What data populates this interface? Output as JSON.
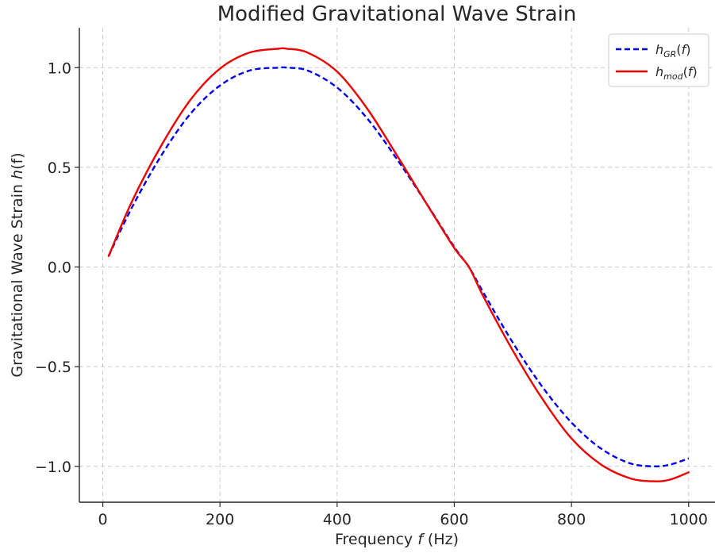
{
  "chart_data": {
    "type": "line",
    "title": "Modified Gravitational Wave Strain",
    "xlabel_pre": "Frequency ",
    "xlabel_var": "f",
    "xlabel_post": " (Hz)",
    "ylabel_pre": "Gravitational Wave Strain ",
    "ylabel_var": "h",
    "ylabel_post": "(f)",
    "xlim": [
      -40,
      1045
    ],
    "ylim": [
      -1.18,
      1.2
    ],
    "xticks": [
      0,
      200,
      400,
      600,
      800,
      1000
    ],
    "xtick_labels": [
      "0",
      "200",
      "400",
      "600",
      "800",
      "1000"
    ],
    "yticks": [
      -1.0,
      -0.5,
      0.0,
      0.5,
      1.0
    ],
    "ytick_labels": [
      "−1.0",
      "−0.5",
      "0.0",
      "0.5",
      "1.0"
    ],
    "grid": true,
    "legend_position": "top-right",
    "series": [
      {
        "name": "h_GR(f)",
        "legend_base": "h",
        "legend_sub": "GR",
        "legend_suffix": "(f)",
        "color": "#0000ee",
        "style": "dashed",
        "x": [
          10,
          50,
          100,
          150,
          200,
          250,
          300,
          314,
          350,
          400,
          450,
          500,
          550,
          600,
          625,
          650,
          700,
          750,
          800,
          850,
          900,
          943,
          970,
          1000
        ],
        "y": [
          0.055,
          0.3,
          0.56,
          0.77,
          0.91,
          0.985,
          1.0,
          1.0,
          0.985,
          0.9,
          0.75,
          0.55,
          0.33,
          0.1,
          0.0,
          -0.13,
          -0.38,
          -0.6,
          -0.78,
          -0.91,
          -0.985,
          -1.0,
          -0.99,
          -0.96
        ]
      },
      {
        "name": "h_mod(f)",
        "legend_base": "h",
        "legend_sub": "mod",
        "legend_suffix": "(f)",
        "color": "#ee0000",
        "style": "solid",
        "x": [
          10,
          50,
          100,
          150,
          200,
          250,
          300,
          314,
          350,
          400,
          450,
          500,
          550,
          600,
          625,
          650,
          700,
          750,
          800,
          850,
          900,
          943,
          970,
          1000
        ],
        "y": [
          0.055,
          0.33,
          0.61,
          0.84,
          0.995,
          1.075,
          1.095,
          1.095,
          1.075,
          0.98,
          0.8,
          0.57,
          0.33,
          0.095,
          0.0,
          -0.15,
          -0.42,
          -0.66,
          -0.86,
          -0.99,
          -1.06,
          -1.075,
          -1.065,
          -1.03
        ]
      }
    ]
  }
}
